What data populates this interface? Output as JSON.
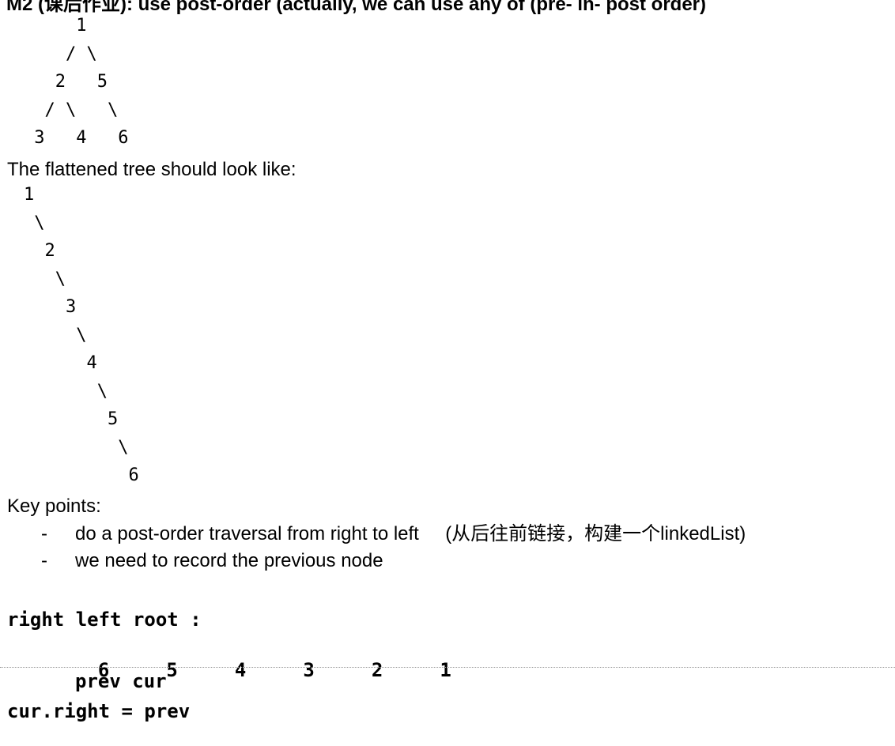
{
  "title": "M2 (课后作业): use post-order  (actually, we can use any of  (pre- in- post order)",
  "original_tree": [
    "     1",
    "    / \\",
    "   2   5",
    "  / \\   \\",
    " 3   4   6"
  ],
  "flattened_label": "The flattened tree should look like:",
  "flattened_tree": [
    "1",
    " \\",
    "  2",
    "   \\",
    "    3",
    "     \\",
    "      4",
    "       \\",
    "        5",
    "         \\",
    "          6"
  ],
  "key_points_label": "Key points:",
  "key_points": [
    {
      "dash": "-",
      "text": "do a post-order traversal from right to left     (从后往前链接，构建一个linkedList)"
    },
    {
      "dash": "-",
      "text": "we need to record the previous node"
    }
  ],
  "code": {
    "order_line": "right left root :",
    "sequence": [
      "6",
      "5",
      "4",
      "3",
      "2",
      "1"
    ],
    "pointer_line": "prev cur",
    "assignment_line": "cur.right = prev"
  }
}
